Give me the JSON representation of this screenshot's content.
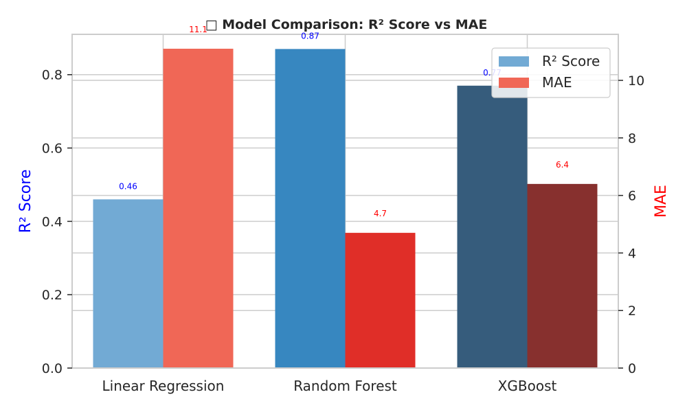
{
  "chart_data": {
    "type": "bar",
    "title": "□ Model Comparison: R² Score vs MAE",
    "categories": [
      "Linear Regression",
      "Random Forest",
      "XGBoost"
    ],
    "series": [
      {
        "name": "R² Score",
        "axis": "left",
        "values": [
          0.46,
          0.87,
          0.77
        ],
        "labels": [
          "0.46",
          "0.87",
          "0.77"
        ],
        "colors": [
          "#72aad4",
          "#3787c0",
          "#365c7c"
        ],
        "label_color": "#0000ff"
      },
      {
        "name": "MAE",
        "axis": "right",
        "values": [
          11.1,
          4.7,
          6.4
        ],
        "labels": [
          "11.1",
          "4.7",
          "6.4"
        ],
        "colors": [
          "#f06756",
          "#e02e28",
          "#87302e"
        ],
        "label_color": "#ff0000"
      }
    ],
    "ylabel": "R² Score",
    "ylabel_color": "#0000ff",
    "ylim": [
      0,
      0.91
    ],
    "yticks": [
      "0.0",
      "0.2",
      "0.4",
      "0.6",
      "0.8"
    ],
    "y2label": "MAE",
    "y2label_color": "#ff0000",
    "y2lim": [
      0,
      11.6
    ],
    "y2ticks": [
      "0",
      "2",
      "4",
      "6",
      "8",
      "10"
    ],
    "grid": true,
    "legend": {
      "position": "top-right",
      "entries": [
        {
          "label": "R² Score",
          "color": "#72aad4"
        },
        {
          "label": "MAE",
          "color": "#f06756"
        }
      ]
    }
  }
}
